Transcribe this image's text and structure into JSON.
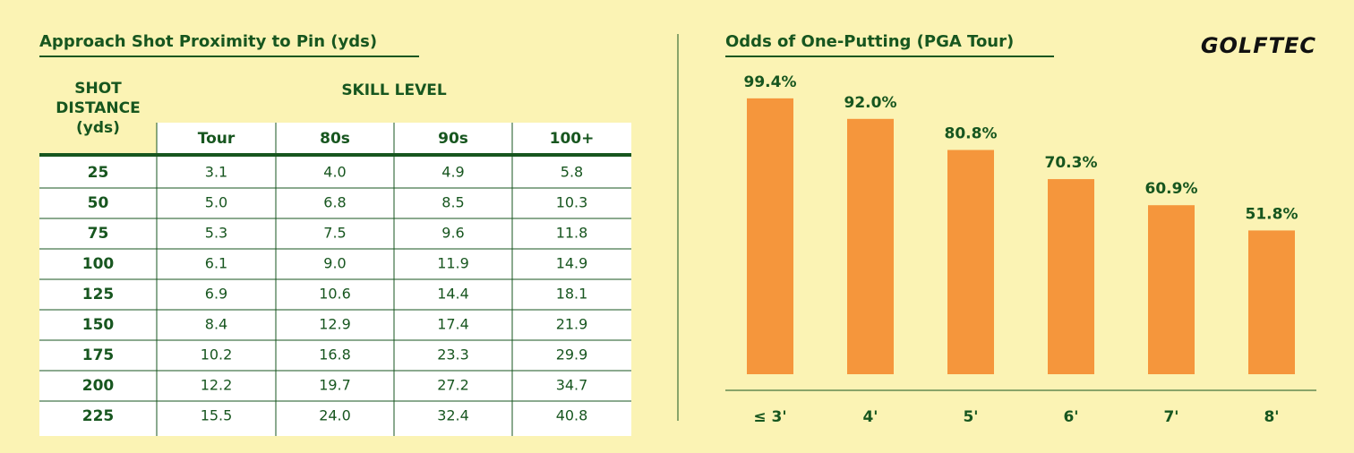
{
  "table": {
    "title": "Approach Shot Proximity to Pin (yds)",
    "row_header": "SHOT DISTANCE (yds)",
    "group_header": "SKILL LEVEL",
    "columns": [
      "Tour",
      "80s",
      "90s",
      "100+"
    ],
    "rows": [
      [
        "25",
        "3.1",
        "4.0",
        "4.9",
        "5.8"
      ],
      [
        "50",
        "5.0",
        "6.8",
        "8.5",
        "10.3"
      ],
      [
        "75",
        "5.3",
        "7.5",
        "9.6",
        "11.8"
      ],
      [
        "100",
        "6.1",
        "9.0",
        "11.9",
        "14.9"
      ],
      [
        "125",
        "6.9",
        "10.6",
        "14.4",
        "18.1"
      ],
      [
        "150",
        "8.4",
        "12.9",
        "17.4",
        "21.9"
      ],
      [
        "175",
        "10.2",
        "16.8",
        "23.3",
        "29.9"
      ],
      [
        "200",
        "12.2",
        "19.7",
        "27.2",
        "34.7"
      ],
      [
        "225",
        "15.5",
        "24.0",
        "32.4",
        "40.8"
      ]
    ]
  },
  "logo": "GOLFTEC",
  "chart_data": {
    "type": "bar",
    "title": "Odds of One-Putting (PGA Tour)",
    "categories": [
      "≤ 3'",
      "4'",
      "5'",
      "6'",
      "7'",
      "8'"
    ],
    "values": [
      99.4,
      92.0,
      80.8,
      70.3,
      60.9,
      51.8
    ],
    "value_labels": [
      "99.4%",
      "92.0%",
      "80.8%",
      "70.3%",
      "60.9%",
      "51.8%"
    ],
    "color": "#f5963c"
  }
}
